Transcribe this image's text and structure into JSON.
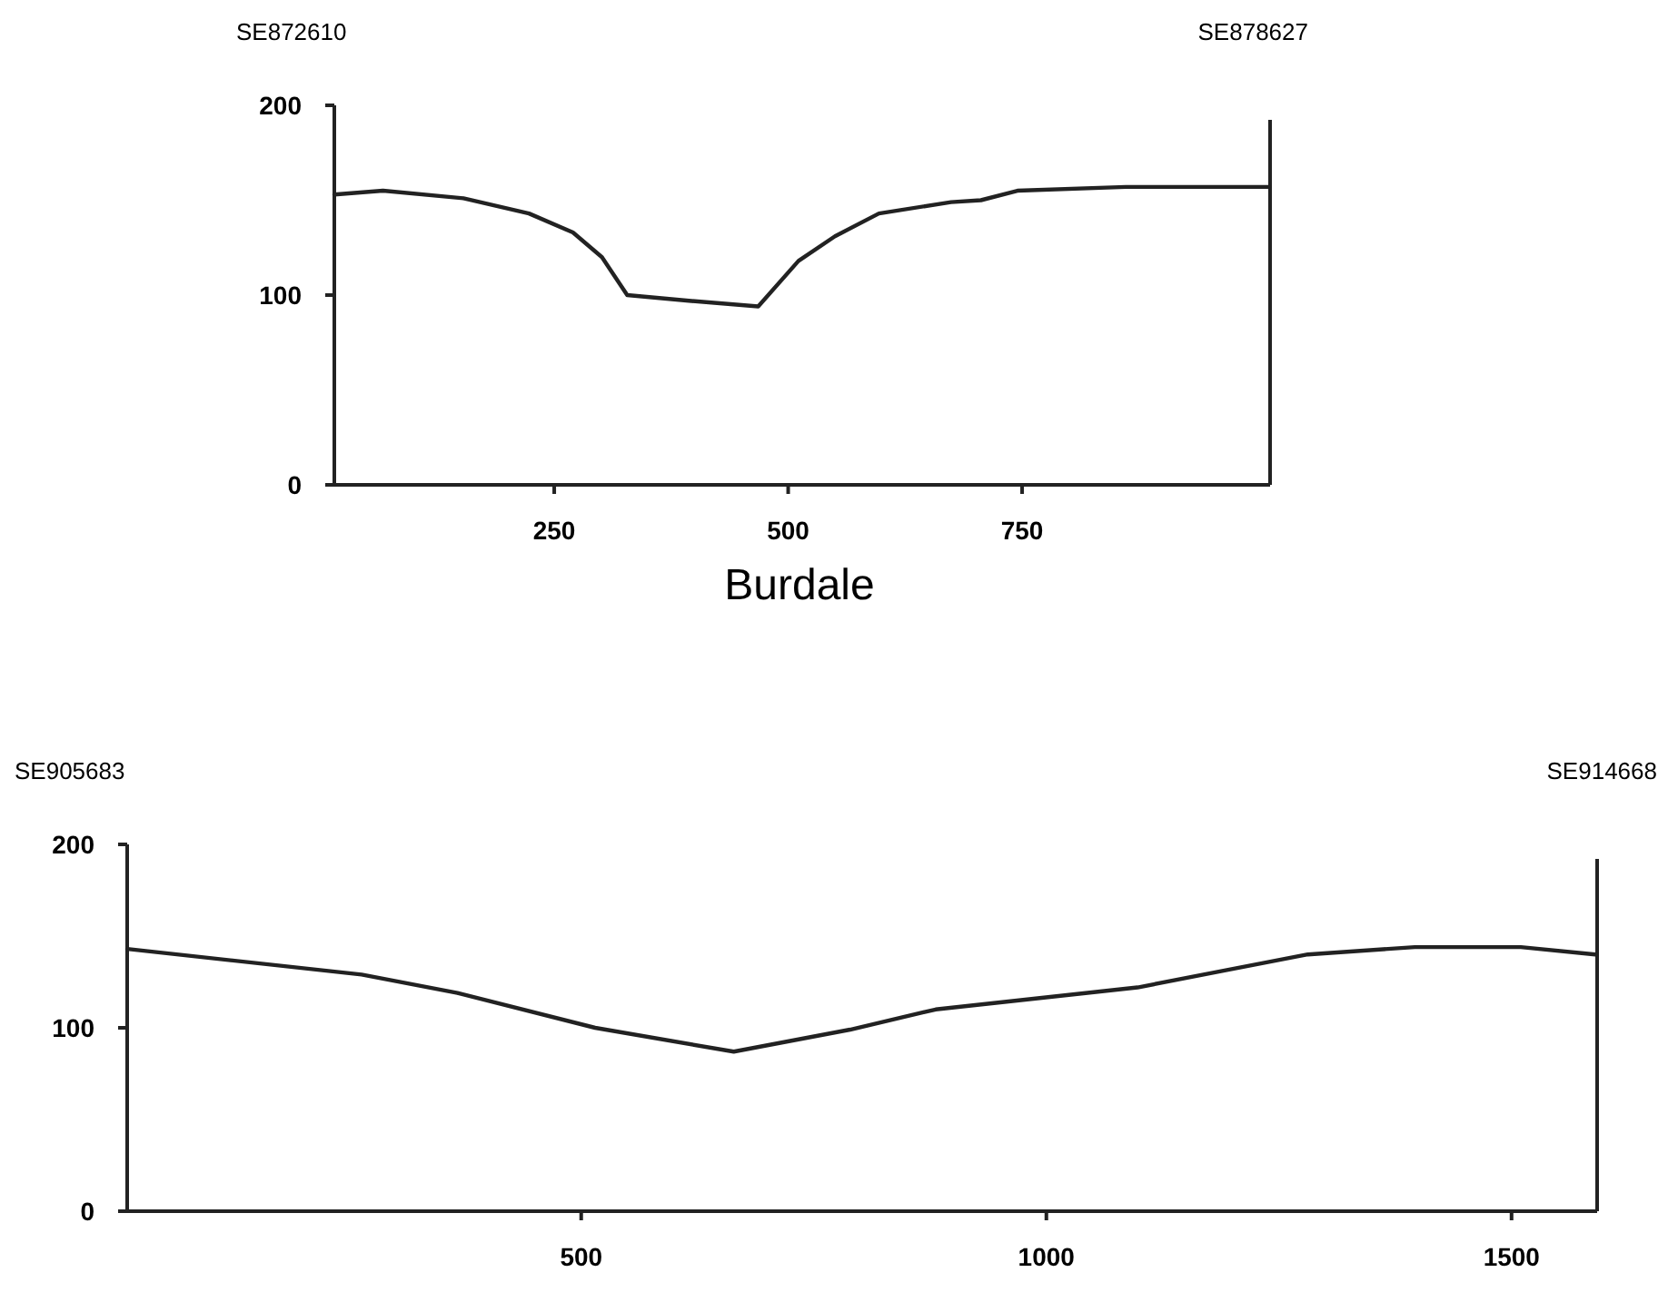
{
  "chart_data": [
    {
      "type": "line",
      "annotations": [
        "SE872610",
        "SE878627"
      ],
      "xlim": [
        15,
        1015
      ],
      "ylim": [
        0,
        200
      ],
      "xticks": [
        250,
        500,
        750
      ],
      "yticks": [
        0,
        100,
        200
      ],
      "grid": false,
      "series": [
        {
          "color": "#222222",
          "x": [
            15,
            67,
            153,
            223,
            270,
            301,
            328,
            394,
            468,
            511,
            550,
            597,
            674,
            706,
            745,
            861,
            1014
          ],
          "values": [
            153,
            155,
            151,
            143,
            133,
            120,
            100,
            97,
            94,
            118,
            131,
            143,
            149,
            150,
            155,
            157,
            157
          ]
        }
      ]
    },
    {
      "type": "line",
      "title": "Burdale",
      "annotations": [
        "SE905683",
        "SE914668"
      ],
      "xlim": [
        12,
        1592
      ],
      "ylim": [
        0,
        200
      ],
      "xticks": [
        500,
        1000,
        1500
      ],
      "yticks": [
        0,
        100,
        200
      ],
      "grid": false,
      "series": [
        {
          "color": "#222222",
          "x": [
            12,
            264,
            367,
            515,
            664,
            789,
            881,
            1098,
            1189,
            1281,
            1396,
            1510,
            1590
          ],
          "values": [
            143,
            129,
            119,
            100,
            87,
            99,
            110,
            122,
            131,
            140,
            144,
            144,
            140
          ]
        }
      ]
    }
  ]
}
